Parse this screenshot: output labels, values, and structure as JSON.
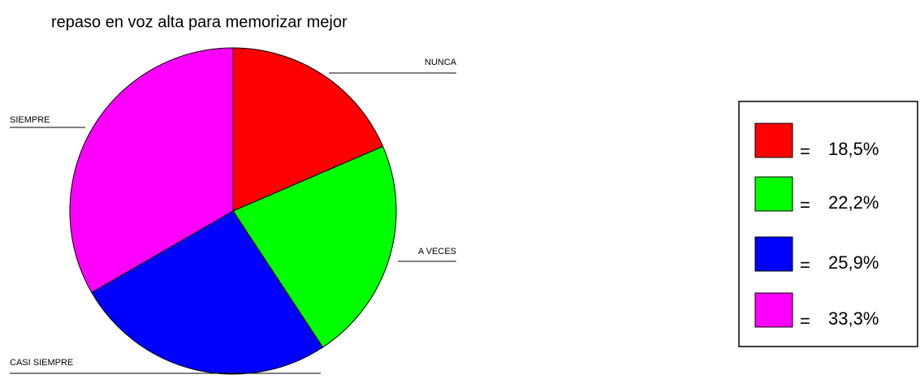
{
  "chart_data": {
    "type": "pie",
    "title": "repaso en voz alta para memorizar mejor",
    "categories": [
      "NUNCA",
      "A VECES",
      "CASI SIEMPRE",
      "SIEMPRE"
    ],
    "values": [
      18.5,
      22.2,
      25.9,
      33.3
    ],
    "value_labels": [
      "18,5%",
      "22,2%",
      "25,9%",
      "33,3%"
    ],
    "colors": [
      "#ff0000",
      "#00ff00",
      "#0000ff",
      "#ff00ff"
    ],
    "legend_separator": "="
  }
}
